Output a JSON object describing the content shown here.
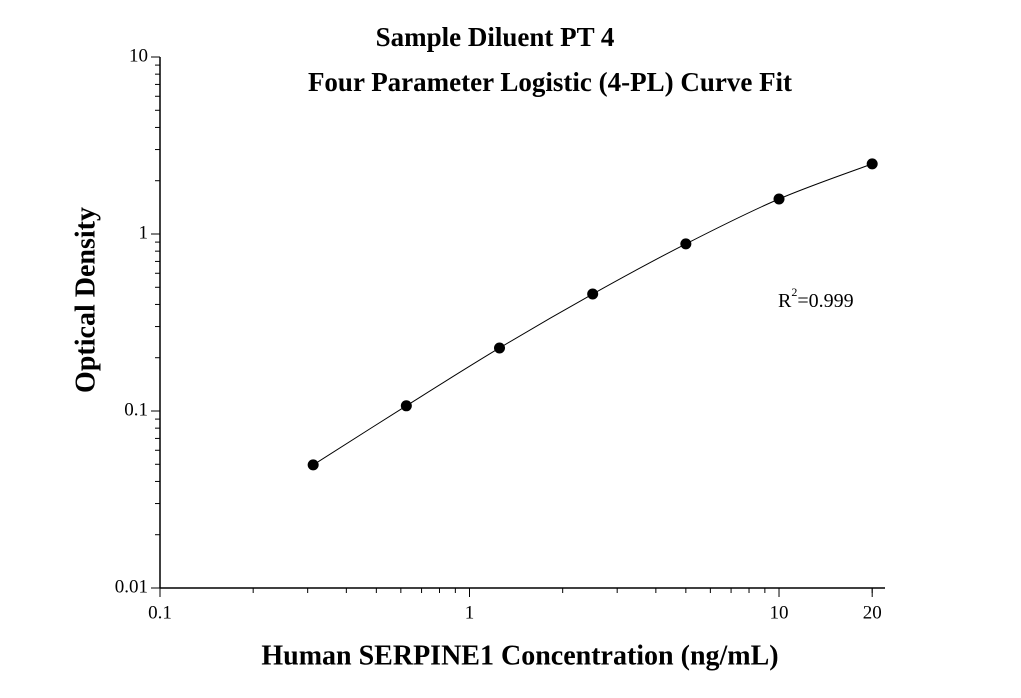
{
  "chart_data": {
    "type": "scatter",
    "title": "Sample Diluent PT 4",
    "subtitle": "Four Parameter Logistic (4-PL) Curve Fit",
    "x_label": "Human SERPINE1 Concentration (ng/mL)",
    "y_label": "Optical Density",
    "x": [
      0.3125,
      0.625,
      1.25,
      2.5,
      5,
      10,
      20
    ],
    "series": [
      {
        "color": "#000000",
        "values": [
          0.0496,
          0.107,
          0.227,
          0.458,
          0.879,
          1.577,
          2.49
        ]
      }
    ],
    "fit_line": true,
    "annotation": [
      "R",
      "2",
      "=0.999"
    ],
    "xlog": true,
    "ylog": true,
    "xlim": [
      0.1,
      22
    ],
    "ylim": [
      0.01,
      10
    ],
    "xticks": [
      0.1,
      1,
      10,
      20
    ],
    "yticks": [
      0.01,
      0.1,
      1,
      10
    ],
    "minor_ticks": true
  }
}
